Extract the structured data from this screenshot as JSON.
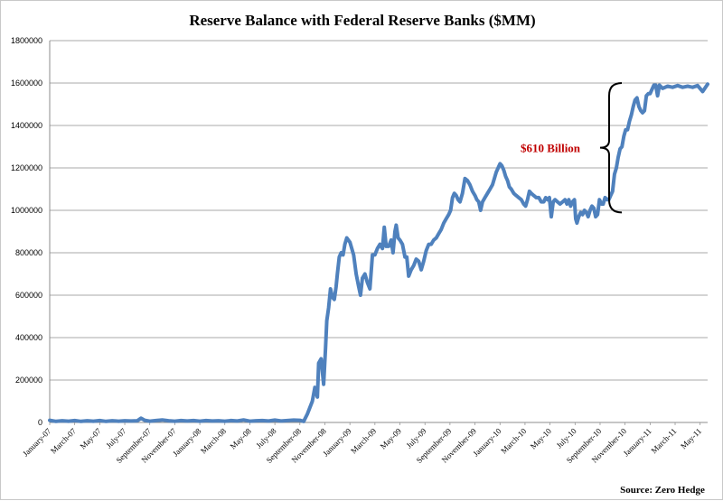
{
  "chart_data": {
    "type": "line",
    "title": "Reserve Balance with Federal Reserve Banks ($MM)",
    "source": "Source: Zero Hedge",
    "ylim": [
      0,
      1800000
    ],
    "yticks": [
      "0",
      "200000",
      "400000",
      "600000",
      "800000",
      "1000000",
      "1200000",
      "1400000",
      "1600000",
      "1800000"
    ],
    "grid": true,
    "xlim": [
      0,
      52.6
    ],
    "xticks": [
      {
        "label": "January-07",
        "x": 0
      },
      {
        "label": "March-07",
        "x": 2
      },
      {
        "label": "May-07",
        "x": 4
      },
      {
        "label": "July-07",
        "x": 6
      },
      {
        "label": "September-07",
        "x": 8
      },
      {
        "label": "November-07",
        "x": 10
      },
      {
        "label": "January-08",
        "x": 12
      },
      {
        "label": "March-08",
        "x": 14
      },
      {
        "label": "May-08",
        "x": 16
      },
      {
        "label": "July-08",
        "x": 18
      },
      {
        "label": "September-08",
        "x": 20
      },
      {
        "label": "November-08",
        "x": 22
      },
      {
        "label": "January-09",
        "x": 24
      },
      {
        "label": "March-09",
        "x": 26
      },
      {
        "label": "May-09",
        "x": 28
      },
      {
        "label": "July-09",
        "x": 30
      },
      {
        "label": "September-09",
        "x": 32
      },
      {
        "label": "November-09",
        "x": 34
      },
      {
        "label": "January-10",
        "x": 36
      },
      {
        "label": "March-10",
        "x": 38
      },
      {
        "label": "May-10",
        "x": 40
      },
      {
        "label": "July-10",
        "x": 42
      },
      {
        "label": "September-10",
        "x": 44
      },
      {
        "label": "November-10",
        "x": 46
      },
      {
        "label": "January-11",
        "x": 48
      },
      {
        "label": "March-11",
        "x": 50
      },
      {
        "label": "May-11",
        "x": 52
      }
    ],
    "series": [
      {
        "name": "Reserve Balance ($MM)",
        "color": "#4f81bd",
        "points": [
          [
            0,
            10000
          ],
          [
            0.5,
            5000
          ],
          [
            1,
            8000
          ],
          [
            1.5,
            6000
          ],
          [
            2,
            9000
          ],
          [
            2.5,
            5000
          ],
          [
            3,
            8000
          ],
          [
            3.5,
            6000
          ],
          [
            4,
            9000
          ],
          [
            4.5,
            5000
          ],
          [
            5,
            8000
          ],
          [
            5.5,
            6000
          ],
          [
            6,
            8000
          ],
          [
            6.5,
            7000
          ],
          [
            7,
            8000
          ],
          [
            7.3,
            20000
          ],
          [
            7.6,
            10000
          ],
          [
            8,
            6000
          ],
          [
            8.5,
            9000
          ],
          [
            9,
            12000
          ],
          [
            9.5,
            8000
          ],
          [
            10,
            6000
          ],
          [
            10.5,
            9000
          ],
          [
            11,
            7000
          ],
          [
            11.5,
            9000
          ],
          [
            12,
            6000
          ],
          [
            12.5,
            9000
          ],
          [
            13,
            7000
          ],
          [
            13.5,
            8000
          ],
          [
            14,
            6000
          ],
          [
            14.5,
            9000
          ],
          [
            15,
            7000
          ],
          [
            15.5,
            12000
          ],
          [
            16,
            6000
          ],
          [
            16.5,
            8000
          ],
          [
            17,
            9000
          ],
          [
            17.5,
            7000
          ],
          [
            18,
            11000
          ],
          [
            18.5,
            7000
          ],
          [
            19,
            9000
          ],
          [
            19.5,
            11000
          ],
          [
            20,
            10000
          ],
          [
            20.3,
            5000
          ],
          [
            20.6,
            40000
          ],
          [
            21,
            100000
          ],
          [
            21.2,
            165000
          ],
          [
            21.4,
            120000
          ],
          [
            21.5,
            280000
          ],
          [
            21.7,
            300000
          ],
          [
            21.9,
            180000
          ],
          [
            22.05,
            350000
          ],
          [
            22.15,
            480000
          ],
          [
            22.3,
            540000
          ],
          [
            22.45,
            630000
          ],
          [
            22.6,
            590000
          ],
          [
            22.75,
            580000
          ],
          [
            22.9,
            640000
          ],
          [
            23,
            700000
          ],
          [
            23.15,
            780000
          ],
          [
            23.3,
            800000
          ],
          [
            23.45,
            790000
          ],
          [
            23.6,
            840000
          ],
          [
            23.75,
            870000
          ],
          [
            24,
            850000
          ],
          [
            24.3,
            790000
          ],
          [
            24.5,
            700000
          ],
          [
            24.7,
            640000
          ],
          [
            24.85,
            600000
          ],
          [
            25,
            680000
          ],
          [
            25.2,
            700000
          ],
          [
            25.4,
            660000
          ],
          [
            25.6,
            630000
          ],
          [
            25.8,
            790000
          ],
          [
            26,
            790000
          ],
          [
            26.2,
            820000
          ],
          [
            26.4,
            840000
          ],
          [
            26.6,
            820000
          ],
          [
            26.75,
            920000
          ],
          [
            26.9,
            830000
          ],
          [
            27.1,
            830000
          ],
          [
            27.3,
            860000
          ],
          [
            27.45,
            800000
          ],
          [
            27.6,
            900000
          ],
          [
            27.7,
            930000
          ],
          [
            27.85,
            870000
          ],
          [
            28,
            860000
          ],
          [
            28.2,
            840000
          ],
          [
            28.4,
            780000
          ],
          [
            28.55,
            780000
          ],
          [
            28.7,
            690000
          ],
          [
            28.9,
            720000
          ],
          [
            29.1,
            740000
          ],
          [
            29.3,
            770000
          ],
          [
            29.5,
            760000
          ],
          [
            29.7,
            720000
          ],
          [
            29.9,
            760000
          ],
          [
            30.1,
            810000
          ],
          [
            30.3,
            840000
          ],
          [
            30.5,
            840000
          ],
          [
            30.7,
            860000
          ],
          [
            30.9,
            870000
          ],
          [
            31.1,
            890000
          ],
          [
            31.3,
            910000
          ],
          [
            31.5,
            940000
          ],
          [
            31.7,
            960000
          ],
          [
            31.9,
            980000
          ],
          [
            32.05,
            1000000
          ],
          [
            32.2,
            1060000
          ],
          [
            32.35,
            1080000
          ],
          [
            32.5,
            1070000
          ],
          [
            32.65,
            1050000
          ],
          [
            32.8,
            1040000
          ],
          [
            33,
            1080000
          ],
          [
            33.2,
            1150000
          ],
          [
            33.4,
            1140000
          ],
          [
            33.6,
            1120000
          ],
          [
            33.8,
            1090000
          ],
          [
            34,
            1070000
          ],
          [
            34.15,
            1050000
          ],
          [
            34.3,
            1040000
          ],
          [
            34.45,
            1000000
          ],
          [
            34.6,
            1040000
          ],
          [
            34.8,
            1060000
          ],
          [
            35,
            1080000
          ],
          [
            35.2,
            1100000
          ],
          [
            35.4,
            1120000
          ],
          [
            35.55,
            1150000
          ],
          [
            35.7,
            1180000
          ],
          [
            35.85,
            1200000
          ],
          [
            36,
            1220000
          ],
          [
            36.15,
            1210000
          ],
          [
            36.3,
            1190000
          ],
          [
            36.45,
            1160000
          ],
          [
            36.6,
            1140000
          ],
          [
            36.75,
            1110000
          ],
          [
            36.9,
            1100000
          ],
          [
            37.1,
            1080000
          ],
          [
            37.3,
            1070000
          ],
          [
            37.5,
            1060000
          ],
          [
            37.7,
            1050000
          ],
          [
            37.9,
            1030000
          ],
          [
            38.05,
            1020000
          ],
          [
            38.2,
            1050000
          ],
          [
            38.35,
            1090000
          ],
          [
            38.5,
            1080000
          ],
          [
            38.7,
            1070000
          ],
          [
            38.9,
            1060000
          ],
          [
            39.1,
            1060000
          ],
          [
            39.3,
            1040000
          ],
          [
            39.5,
            1040000
          ],
          [
            39.65,
            1060000
          ],
          [
            39.8,
            1050000
          ],
          [
            39.95,
            1060000
          ],
          [
            40.1,
            970000
          ],
          [
            40.25,
            1040000
          ],
          [
            40.4,
            1050000
          ],
          [
            40.6,
            1040000
          ],
          [
            40.8,
            1030000
          ],
          [
            41,
            1040000
          ],
          [
            41.2,
            1050000
          ],
          [
            41.35,
            1030000
          ],
          [
            41.5,
            1050000
          ],
          [
            41.65,
            1020000
          ],
          [
            41.8,
            1040000
          ],
          [
            41.95,
            1050000
          ],
          [
            42.05,
            960000
          ],
          [
            42.15,
            940000
          ],
          [
            42.3,
            970000
          ],
          [
            42.45,
            990000
          ],
          [
            42.6,
            980000
          ],
          [
            42.75,
            1000000
          ],
          [
            42.9,
            990000
          ],
          [
            43.05,
            970000
          ],
          [
            43.2,
            1000000
          ],
          [
            43.35,
            1020000
          ],
          [
            43.5,
            1010000
          ],
          [
            43.65,
            970000
          ],
          [
            43.8,
            980000
          ],
          [
            43.95,
            1050000
          ],
          [
            44.1,
            1030000
          ],
          [
            44.25,
            1030000
          ],
          [
            44.4,
            1060000
          ],
          [
            44.55,
            1050000
          ],
          [
            44.7,
            1050000
          ],
          [
            44.85,
            1070000
          ],
          [
            45,
            1090000
          ],
          [
            45.15,
            1170000
          ],
          [
            45.3,
            1200000
          ],
          [
            45.45,
            1250000
          ],
          [
            45.6,
            1290000
          ],
          [
            45.75,
            1300000
          ],
          [
            45.9,
            1350000
          ],
          [
            46.05,
            1380000
          ],
          [
            46.2,
            1380000
          ],
          [
            46.35,
            1420000
          ],
          [
            46.5,
            1450000
          ],
          [
            46.65,
            1490000
          ],
          [
            46.8,
            1520000
          ],
          [
            46.95,
            1530000
          ],
          [
            47.1,
            1490000
          ],
          [
            47.25,
            1470000
          ],
          [
            47.4,
            1460000
          ],
          [
            47.55,
            1470000
          ],
          [
            47.7,
            1540000
          ],
          [
            47.85,
            1550000
          ],
          [
            48,
            1550000
          ],
          [
            48.15,
            1570000
          ],
          [
            48.3,
            1590000
          ],
          [
            48.45,
            1590000
          ],
          [
            48.6,
            1540000
          ],
          [
            48.75,
            1590000
          ],
          [
            49.0,
            1575000
          ],
          [
            49.4,
            1585000
          ],
          [
            49.8,
            1580000
          ],
          [
            50.2,
            1588000
          ],
          [
            50.6,
            1580000
          ],
          [
            51.0,
            1585000
          ],
          [
            51.4,
            1580000
          ],
          [
            51.8,
            1588000
          ],
          [
            52.2,
            1560000
          ],
          [
            52.6,
            1595000
          ]
        ]
      }
    ],
    "annotation": {
      "text": "$610 Billion",
      "color": "#c00000",
      "y_low": 990000,
      "y_high": 1600000
    }
  }
}
